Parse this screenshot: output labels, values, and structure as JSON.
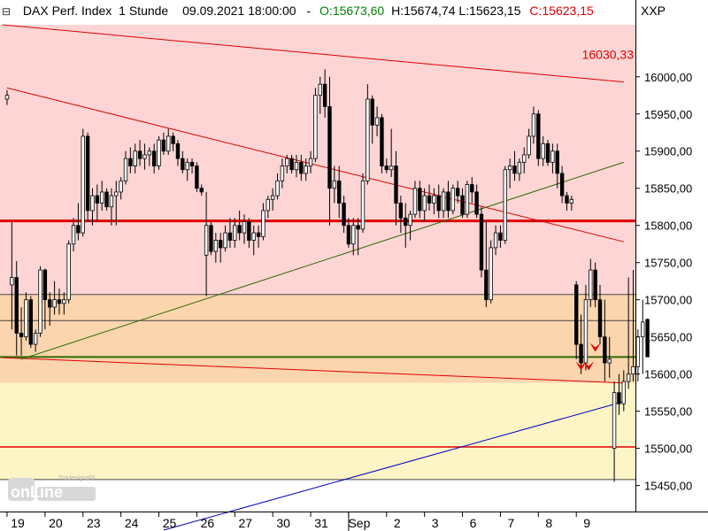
{
  "header": {
    "collapse_glyph": "⊟",
    "instrument": "DAX Perf. Index",
    "interval": "1 Stunde",
    "datetime": "09.09.2021 18:00:00",
    "ohlc_sep": "-",
    "open_label": "O:15673,60",
    "high_label": "H:15674,74",
    "low_label": "L:15623,15",
    "close_label": "C:15623,15",
    "symbol": "XXP",
    "colors": {
      "open": "#008000",
      "close": "#e00000"
    }
  },
  "logo": {
    "brand": "Tradesignal®",
    "name": "onLine"
  },
  "chart_data": {
    "type": "candlestick",
    "title": "DAX Perf. Index 1 Stunde",
    "ylim": [
      15415,
      16070
    ],
    "yticks": [
      15450,
      15500,
      15550,
      15600,
      15650,
      15700,
      15750,
      15800,
      15850,
      15900,
      15950,
      16000
    ],
    "ytick_labels": [
      "15450,00",
      "15500,00",
      "15550,00",
      "15600,00",
      "15650,00",
      "15700,00",
      "15750,00",
      "15800,00",
      "15850,00",
      "15900,00",
      "15950,00",
      "16000,00"
    ],
    "x_labels": [
      "19",
      "20",
      "23",
      "24",
      "25",
      "26",
      "27",
      "30",
      "31",
      "Sep",
      "2",
      "3",
      "6",
      "7",
      "8",
      "9"
    ],
    "x_label_bars": [
      2,
      10,
      18,
      26,
      34,
      42,
      50,
      58,
      66,
      74,
      82,
      90,
      98,
      106,
      114,
      122
    ],
    "x_major_separators": [
      74
    ],
    "price_marker_label": "16030,33",
    "price_marker_value": 16030.33,
    "zones": [
      {
        "from": 15707,
        "to": 16070,
        "color": "#fdd5d5"
      },
      {
        "from": 15588,
        "to": 15707,
        "color": "#fbd5ae"
      },
      {
        "from": 15458,
        "to": 15588,
        "color": "#fdf5c5"
      }
    ],
    "hlines": [
      {
        "y": 15806,
        "color": "#e00000",
        "width": 3
      },
      {
        "y": 15707,
        "color": "#444444",
        "width": 1
      },
      {
        "y": 15672,
        "color": "#444444",
        "width": 1
      },
      {
        "y": 15623,
        "color": "#2e6b00",
        "width": 2
      },
      {
        "y": 15502,
        "color": "#e00000",
        "width": 1.5
      },
      {
        "y": 15458,
        "color": "#444444",
        "width": 1
      }
    ],
    "trendlines": [
      {
        "x1": -1,
        "y1": 16070,
        "x2": 130,
        "y2": 15993,
        "color": "#e00000",
        "width": 1
      },
      {
        "x1": -1,
        "y1": 15622,
        "x2": 130,
        "y2": 15588,
        "color": "#e00000",
        "width": 1
      },
      {
        "x1": 0,
        "y1": 15985,
        "x2": 130,
        "y2": 15778,
        "color": "#e00000",
        "width": 1
      },
      {
        "x1": 3,
        "y1": 15620,
        "x2": 130,
        "y2": 15885,
        "color": "#2e6b00",
        "width": 1
      },
      {
        "x1": 33,
        "y1": 15390,
        "x2": 130,
        "y2": 15563,
        "color": "#0000c0",
        "width": 1
      }
    ],
    "red_arrows": [
      {
        "bar": 124,
        "y": 15630
      },
      {
        "bar": 121,
        "y": 15605
      },
      {
        "bar": 122.6,
        "y": 15605
      }
    ],
    "grid": false,
    "candles": [
      [
        15970,
        15982,
        15962,
        15975
      ],
      [
        15720,
        15805,
        15660,
        15730
      ],
      [
        15730,
        15752,
        15625,
        15655
      ],
      [
        15655,
        15690,
        15625,
        15650
      ],
      [
        15650,
        15710,
        15645,
        15700
      ],
      [
        15700,
        15705,
        15635,
        15640
      ],
      [
        15640,
        15660,
        15630,
        15655
      ],
      [
        15655,
        15745,
        15650,
        15740
      ],
      [
        15740,
        15742,
        15660,
        15700
      ],
      [
        15700,
        15710,
        15665,
        15690
      ],
      [
        15690,
        15725,
        15680,
        15700
      ],
      [
        15700,
        15715,
        15680,
        15695
      ],
      [
        15695,
        15710,
        15680,
        15700
      ],
      [
        15700,
        15780,
        15695,
        15775
      ],
      [
        15775,
        15810,
        15765,
        15800
      ],
      [
        15800,
        15830,
        15780,
        15790
      ],
      [
        15790,
        15930,
        15785,
        15920
      ],
      [
        15920,
        15925,
        15805,
        15820
      ],
      [
        15820,
        15850,
        15800,
        15840
      ],
      [
        15840,
        15855,
        15805,
        15830
      ],
      [
        15830,
        15860,
        15820,
        15845
      ],
      [
        15845,
        15850,
        15820,
        15825
      ],
      [
        15825,
        15850,
        15800,
        15840
      ],
      [
        15840,
        15860,
        15800,
        15845
      ],
      [
        15845,
        15865,
        15835,
        15860
      ],
      [
        15860,
        15900,
        15855,
        15890
      ],
      [
        15890,
        15905,
        15870,
        15880
      ],
      [
        15880,
        15910,
        15870,
        15900
      ],
      [
        15900,
        15915,
        15880,
        15890
      ],
      [
        15890,
        15910,
        15875,
        15895
      ],
      [
        15895,
        15905,
        15880,
        15900
      ],
      [
        15900,
        15910,
        15870,
        15880
      ],
      [
        15880,
        15920,
        15875,
        15915
      ],
      [
        15915,
        15925,
        15895,
        15900
      ],
      [
        15900,
        15930,
        15895,
        15920
      ],
      [
        15920,
        15925,
        15900,
        15910
      ],
      [
        15910,
        15915,
        15880,
        15890
      ],
      [
        15890,
        15900,
        15870,
        15875
      ],
      [
        15875,
        15890,
        15860,
        15885
      ],
      [
        15885,
        15890,
        15870,
        15880
      ],
      [
        15880,
        15885,
        15845,
        15850
      ],
      [
        15850,
        15855,
        15840,
        15845
      ],
      [
        15760,
        15845,
        15705,
        15800
      ],
      [
        15800,
        15805,
        15760,
        15765
      ],
      [
        15765,
        15790,
        15750,
        15780
      ],
      [
        15780,
        15790,
        15750,
        15770
      ],
      [
        15770,
        15800,
        15765,
        15790
      ],
      [
        15790,
        15810,
        15770,
        15780
      ],
      [
        15780,
        15810,
        15770,
        15800
      ],
      [
        15800,
        15820,
        15780,
        15790
      ],
      [
        15790,
        15815,
        15775,
        15805
      ],
      [
        15805,
        15810,
        15770,
        15780
      ],
      [
        15780,
        15800,
        15760,
        15790
      ],
      [
        15790,
        15800,
        15770,
        15785
      ],
      [
        15785,
        15830,
        15780,
        15820
      ],
      [
        15820,
        15840,
        15810,
        15835
      ],
      [
        15835,
        15850,
        15820,
        15840
      ],
      [
        15840,
        15870,
        15835,
        15860
      ],
      [
        15860,
        15890,
        15850,
        15880
      ],
      [
        15880,
        15895,
        15870,
        15890
      ],
      [
        15890,
        15895,
        15870,
        15875
      ],
      [
        15875,
        15895,
        15865,
        15885
      ],
      [
        15885,
        15895,
        15860,
        15870
      ],
      [
        15870,
        15890,
        15860,
        15880
      ],
      [
        15880,
        15900,
        15870,
        15890
      ],
      [
        15890,
        15985,
        15885,
        15975
      ],
      [
        15975,
        16000,
        15950,
        15990
      ],
      [
        15990,
        16010,
        15945,
        15960
      ],
      [
        15960,
        16000,
        15800,
        15850
      ],
      [
        15850,
        15880,
        15830,
        15860
      ],
      [
        15860,
        15880,
        15810,
        15830
      ],
      [
        15830,
        15840,
        15790,
        15800
      ],
      [
        15800,
        15810,
        15770,
        15775
      ],
      [
        15775,
        15810,
        15760,
        15800
      ],
      [
        15800,
        15810,
        15760,
        15795
      ],
      [
        15795,
        15870,
        15790,
        15860
      ],
      [
        15860,
        15990,
        15855,
        15970
      ],
      [
        15970,
        15975,
        15910,
        15935
      ],
      [
        15935,
        15960,
        15920,
        15945
      ],
      [
        15945,
        15950,
        15870,
        15880
      ],
      [
        15880,
        15890,
        15870,
        15875
      ],
      [
        15875,
        15930,
        15865,
        15880
      ],
      [
        15880,
        15900,
        15800,
        15830
      ],
      [
        15830,
        15840,
        15790,
        15810
      ],
      [
        15810,
        15830,
        15770,
        15800
      ],
      [
        15800,
        15820,
        15780,
        15815
      ],
      [
        15815,
        15860,
        15810,
        15850
      ],
      [
        15850,
        15860,
        15810,
        15820
      ],
      [
        15820,
        15850,
        15805,
        15840
      ],
      [
        15840,
        15855,
        15820,
        15830
      ],
      [
        15830,
        15850,
        15815,
        15840
      ],
      [
        15840,
        15855,
        15810,
        15820
      ],
      [
        15820,
        15850,
        15810,
        15845
      ],
      [
        15845,
        15860,
        15810,
        15820
      ],
      [
        15820,
        15855,
        15815,
        15850
      ],
      [
        15850,
        15860,
        15830,
        15840
      ],
      [
        15840,
        15850,
        15810,
        15815
      ],
      [
        15815,
        15860,
        15810,
        15855
      ],
      [
        15855,
        15865,
        15830,
        15845
      ],
      [
        15845,
        15855,
        15810,
        15815
      ],
      [
        15815,
        15825,
        15730,
        15740
      ],
      [
        15740,
        15805,
        15690,
        15700
      ],
      [
        15700,
        15780,
        15695,
        15770
      ],
      [
        15770,
        15800,
        15760,
        15790
      ],
      [
        15790,
        15800,
        15770,
        15780
      ],
      [
        15780,
        15880,
        15775,
        15875
      ],
      [
        15875,
        15890,
        15850,
        15880
      ],
      [
        15880,
        15900,
        15860,
        15870
      ],
      [
        15870,
        15890,
        15860,
        15885
      ],
      [
        15885,
        15905,
        15870,
        15895
      ],
      [
        15895,
        15930,
        15890,
        15920
      ],
      [
        15920,
        15960,
        15910,
        15950
      ],
      [
        15950,
        15955,
        15880,
        15890
      ],
      [
        15890,
        15920,
        15880,
        15910
      ],
      [
        15910,
        15915,
        15880,
        15885
      ],
      [
        15885,
        15910,
        15870,
        15900
      ],
      [
        15900,
        15910,
        15850,
        15870
      ],
      [
        15870,
        15880,
        15830,
        15840
      ],
      [
        15840,
        15845,
        15820,
        15830
      ],
      [
        15830,
        15840,
        15820,
        15835
      ],
      [
        15720,
        15725,
        15620,
        15640
      ],
      [
        15640,
        15680,
        15600,
        15615
      ],
      [
        15615,
        15720,
        15605,
        15700
      ],
      [
        15700,
        15755,
        15690,
        15740
      ],
      [
        15740,
        15750,
        15690,
        15700
      ],
      [
        15700,
        15720,
        15640,
        15650
      ],
      [
        15650,
        15700,
        15590,
        15615
      ],
      [
        15615,
        15650,
        15595,
        15620
      ],
      [
        15500,
        15590,
        15455,
        15575
      ],
      [
        15575,
        15600,
        15545,
        15560
      ],
      [
        15560,
        15605,
        15550,
        15590
      ],
      [
        15590,
        15730,
        15580,
        15600
      ],
      [
        15600,
        15740,
        15590,
        15610
      ],
      [
        15610,
        15660,
        15590,
        15650
      ],
      [
        15650,
        15700,
        15600,
        15670
      ],
      [
        15673.6,
        15674.74,
        15623.15,
        15623.15
      ]
    ]
  }
}
